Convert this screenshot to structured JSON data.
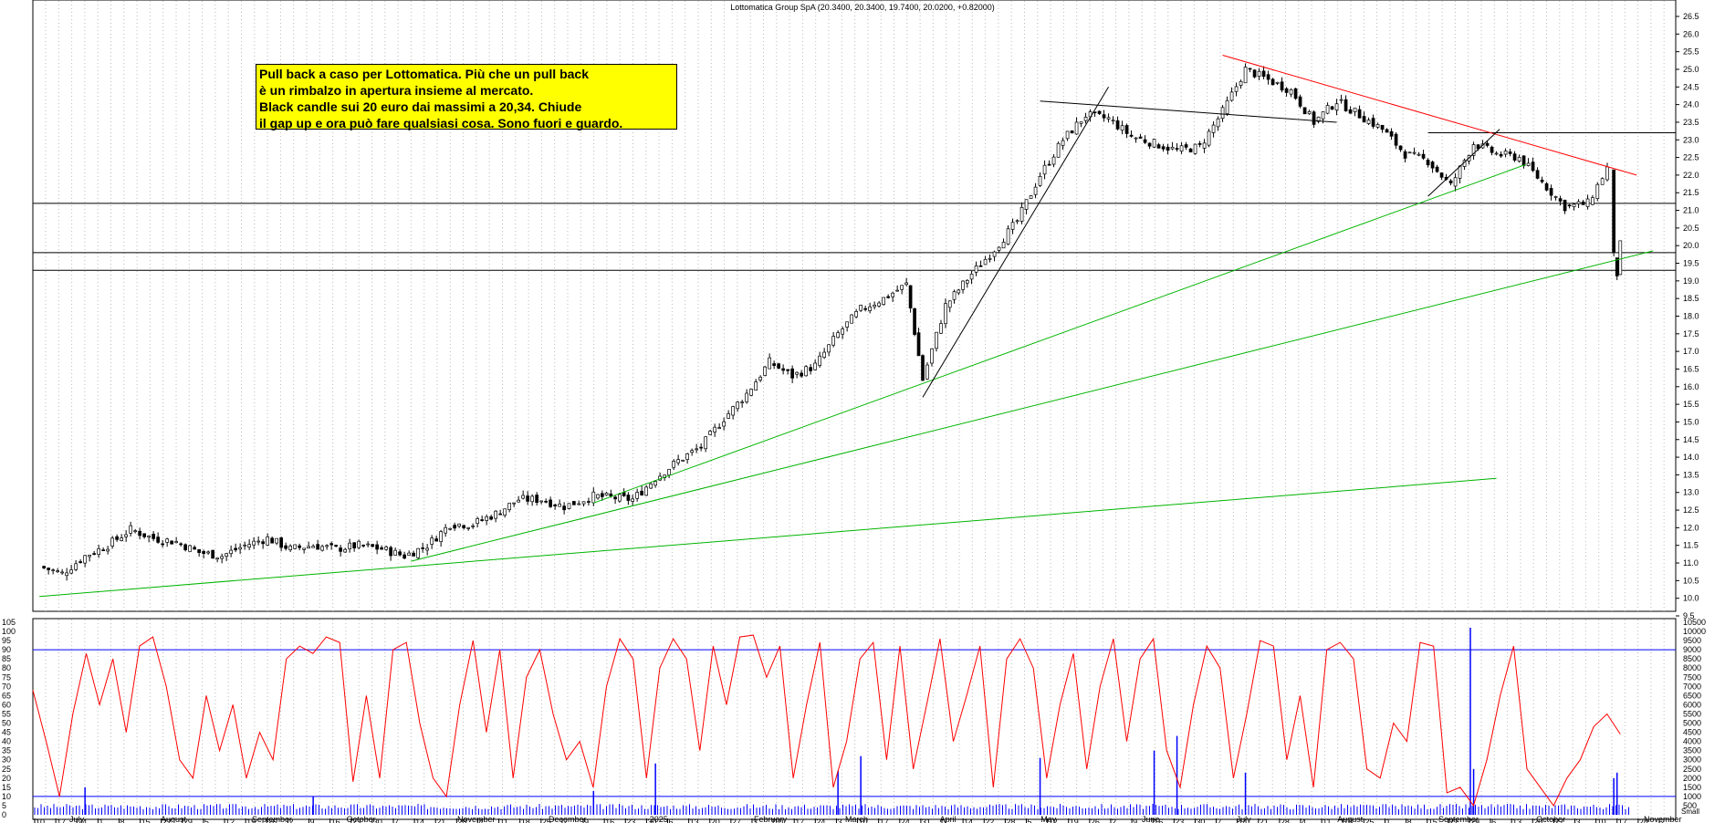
{
  "header": {
    "title": "Lottomatica Group SpA (20.3400, 20.3400, 19.7400, 20.0200, +0.82000)"
  },
  "annotation": {
    "lines": [
      "Pull back a caso per Lottomatica. Più che un pull back",
      "è un rimbalzo in apertura insieme al mercato.",
      "Black candle sui 20 euro dai massimi a 20,34. Chiude",
      "il gap up e ora può fare qualsiasi cosa. Sono fuori e guardo."
    ]
  },
  "colors": {
    "candle_line": "#000000",
    "support_green": "#00b400",
    "resistance_red": "#ff0000",
    "stochastic": "#ff0000",
    "volume": "#0000ff",
    "overbought_line": "#0000ff"
  },
  "chart_data": [
    {
      "type": "candlestick",
      "title": "Lottomatica Group SpA (20.3400, 20.3400, 19.7400, 20.0200, +0.82000)",
      "ylim": [
        9.5,
        26.5
      ],
      "y_ticks": [
        "26.5",
        "26.0",
        "25.5",
        "25.0",
        "24.5",
        "24.0",
        "23.5",
        "23.0",
        "22.5",
        "22.0",
        "21.5",
        "21.0",
        "20.5",
        "20.0",
        "19.5",
        "19.0",
        "18.5",
        "18.0",
        "17.5",
        "17.0",
        "16.5",
        "16.0",
        "15.5",
        "15.0",
        "14.5",
        "14.0",
        "13.5",
        "13.0",
        "12.5",
        "12.0",
        "11.5",
        "11.0",
        "10.5",
        "10.0",
        "9.5"
      ],
      "last": {
        "open": 20.34,
        "high": 20.34,
        "low": 19.74,
        "close": 20.02,
        "change": 0.82
      },
      "price_path": [
        [
          "2024-07-10",
          10.9
        ],
        [
          "2024-07-17",
          10.7
        ],
        [
          "2024-07-24",
          11.2
        ],
        [
          "2024-07-31",
          11.5
        ],
        [
          "2024-08-07",
          11.95
        ],
        [
          "2024-08-14",
          11.7
        ],
        [
          "2024-08-21",
          11.6
        ],
        [
          "2024-08-28",
          11.3
        ],
        [
          "2024-09-04",
          11.2
        ],
        [
          "2024-09-11",
          11.5
        ],
        [
          "2024-09-18",
          11.7
        ],
        [
          "2024-09-25",
          11.4
        ],
        [
          "2024-10-02",
          11.5
        ],
        [
          "2024-10-09",
          11.4
        ],
        [
          "2024-10-16",
          11.5
        ],
        [
          "2024-10-23",
          11.4
        ],
        [
          "2024-10-30",
          11.2
        ],
        [
          "2024-11-06",
          11.5
        ],
        [
          "2024-11-13",
          12.1
        ],
        [
          "2024-11-20",
          12.1
        ],
        [
          "2024-11-27",
          12.4
        ],
        [
          "2024-12-04",
          12.8
        ],
        [
          "2024-12-11",
          12.8
        ],
        [
          "2024-12-18",
          12.6
        ],
        [
          "2024-12-27",
          12.9
        ],
        [
          "2025-01-08",
          12.8
        ],
        [
          "2025-01-15",
          13.4
        ],
        [
          "2025-01-22",
          13.9
        ],
        [
          "2025-01-29",
          14.3
        ],
        [
          "2025-02-05",
          15.1
        ],
        [
          "2025-02-12",
          15.8
        ],
        [
          "2025-02-19",
          16.7
        ],
        [
          "2025-02-26",
          16.3
        ],
        [
          "2025-03-05",
          16.6
        ],
        [
          "2025-03-12",
          17.5
        ],
        [
          "2025-03-19",
          18.2
        ],
        [
          "2025-03-26",
          18.5
        ],
        [
          "2025-04-02",
          18.9
        ],
        [
          "2025-04-07",
          16.2
        ],
        [
          "2025-04-14",
          18.3
        ],
        [
          "2025-04-22",
          19.2
        ],
        [
          "2025-04-29",
          19.9
        ],
        [
          "2025-05-06",
          20.7
        ],
        [
          "2025-05-13",
          22.0
        ],
        [
          "2025-05-20",
          23.0
        ],
        [
          "2025-05-27",
          23.7
        ],
        [
          "2025-06-03",
          23.6
        ],
        [
          "2025-06-10",
          23.1
        ],
        [
          "2025-06-17",
          22.9
        ],
        [
          "2025-06-24",
          22.7
        ],
        [
          "2025-07-01",
          22.8
        ],
        [
          "2025-07-08",
          23.8
        ],
        [
          "2025-07-15",
          25.0
        ],
        [
          "2025-07-22",
          24.7
        ],
        [
          "2025-07-29",
          24.4
        ],
        [
          "2025-08-05",
          23.5
        ],
        [
          "2025-08-12",
          24.1
        ],
        [
          "2025-08-19",
          23.7
        ],
        [
          "2025-08-26",
          23.3
        ],
        [
          "2025-09-02",
          22.6
        ],
        [
          "2025-09-09",
          22.4
        ],
        [
          "2025-09-16",
          21.7
        ],
        [
          "2025-09-23",
          22.9
        ],
        [
          "2025-09-30",
          22.6
        ],
        [
          "2025-10-07",
          22.5
        ],
        [
          "2025-10-14",
          21.8
        ],
        [
          "2025-10-21",
          21.1
        ],
        [
          "2025-10-28",
          21.2
        ],
        [
          "2025-11-03",
          22.2
        ],
        [
          "2025-11-05",
          19.7
        ],
        [
          "2025-11-06",
          19.2
        ],
        [
          "2025-11-07",
          20.02
        ]
      ],
      "horizontal_levels": [
        21.2,
        19.8,
        19.3,
        23.2
      ],
      "trendlines": [
        {
          "color": "green",
          "from": [
            "2024-07-10",
            10.05
          ],
          "to": [
            "2025-09-30",
            13.4
          ]
        },
        {
          "color": "green",
          "from": [
            "2024-11-01",
            11.05
          ],
          "to": [
            "2025-11-17",
            19.85
          ]
        },
        {
          "color": "green",
          "from": [
            "2024-12-27",
            12.7
          ],
          "to": [
            "2025-10-09",
            22.3
          ]
        },
        {
          "color": "red",
          "from": [
            "2025-07-08",
            25.4
          ],
          "to": [
            "2025-11-12",
            22.0
          ]
        },
        {
          "color": "black",
          "from": [
            "2025-04-07",
            15.7
          ],
          "to": [
            "2025-06-03",
            24.5
          ]
        },
        {
          "color": "black",
          "from": [
            "2025-05-13",
            24.1
          ],
          "to": [
            "2025-08-12",
            23.5
          ]
        },
        {
          "color": "black",
          "from": [
            "2025-09-09",
            21.4
          ],
          "to": [
            "2025-10-01",
            23.3
          ]
        }
      ]
    },
    {
      "type": "line",
      "series": [
        {
          "values": [
            68,
            40,
            10,
            55,
            88,
            60,
            85,
            45,
            92,
            97,
            70,
            30,
            20,
            65,
            35,
            60,
            20,
            45,
            30,
            85,
            92,
            88,
            97,
            94,
            18,
            65,
            20,
            90,
            94,
            50,
            20,
            10,
            60,
            95,
            45,
            90,
            20,
            75,
            90,
            55,
            30,
            40,
            15,
            70,
            96,
            85,
            20,
            80,
            96,
            85,
            35,
            92,
            60,
            97,
            98,
            75,
            92,
            20,
            60,
            94,
            15,
            40,
            85,
            94,
            30,
            92,
            25,
            60,
            96,
            40,
            65,
            92,
            15,
            85,
            96,
            80,
            20,
            60,
            88,
            25,
            70,
            96,
            40,
            85,
            96,
            35,
            15,
            60,
            92,
            80,
            20,
            55,
            95,
            92,
            30,
            65,
            15,
            90,
            94,
            85,
            25,
            20,
            50,
            40,
            94,
            92,
            12,
            15,
            5,
            30,
            65,
            92,
            25,
            15,
            5,
            20,
            30,
            48,
            55,
            44
          ]
        }
      ],
      "ylim": [
        0,
        105
      ],
      "y_ticks": [
        "105",
        "100",
        "95",
        "90",
        "85",
        "80",
        "75",
        "70",
        "65",
        "60",
        "55",
        "50",
        "45",
        "40",
        "35",
        "30",
        "25",
        "20",
        "15",
        "10",
        "5",
        "0"
      ],
      "reference_lines": [
        90,
        10
      ]
    },
    {
      "type": "bar",
      "name": "Vol",
      "ylim": [
        0,
        10500
      ],
      "y_ticks": [
        "10500",
        "10000",
        "9500",
        "9000",
        "8500",
        "8000",
        "7500",
        "7000",
        "6500",
        "6000",
        "5500",
        "5000",
        "4500",
        "4000",
        "3500",
        "3000",
        "2500",
        "2000",
        "1500",
        "1000",
        "500"
      ],
      "spikes": [
        [
          "2024-07-24",
          1500
        ],
        [
          "2024-10-02",
          1000
        ],
        [
          "2024-12-27",
          1300
        ],
        [
          "2025-01-15",
          2800
        ],
        [
          "2025-03-12",
          2400
        ],
        [
          "2025-03-19",
          3200
        ],
        [
          "2025-05-13",
          3100
        ],
        [
          "2025-06-17",
          3500
        ],
        [
          "2025-06-24",
          4300
        ],
        [
          "2025-07-15",
          2300
        ],
        [
          "2025-09-22",
          10200
        ],
        [
          "2025-09-23",
          2500
        ],
        [
          "2025-11-05",
          2000
        ],
        [
          "2025-11-06",
          2300
        ]
      ],
      "baseline": 300
    }
  ],
  "x_axis": {
    "day_labels": [
      "10",
      "17",
      "24",
      "1",
      "8",
      "15",
      "22",
      "29",
      "5",
      "12",
      "19",
      "26",
      "2",
      "9",
      "16",
      "23",
      "30",
      "7",
      "14",
      "21",
      "28",
      "4",
      "11",
      "18",
      "25",
      "2",
      "9",
      "16",
      "23",
      "30",
      "6",
      "13",
      "20",
      "27",
      "3",
      "10",
      "17",
      "24",
      "3",
      "10",
      "17",
      "24",
      "31",
      "7",
      "14",
      "22",
      "28",
      "5",
      "12",
      "19",
      "26",
      "2",
      "9",
      "16",
      "23",
      "30",
      "7",
      "14",
      "21",
      "28",
      "4",
      "11",
      "18",
      "25",
      "1",
      "8",
      "15",
      "22",
      "29",
      "6",
      "13",
      "20",
      "27",
      "3",
      "10",
      "17",
      "24",
      "2"
    ],
    "month_labels": [
      "July",
      "August",
      "September",
      "October",
      "November",
      "December",
      "2025",
      "February",
      "March",
      "April",
      "May",
      "June",
      "July",
      "August",
      "September",
      "October",
      "November"
    ]
  },
  "panel_labels": {
    "volume_unit": "Small"
  }
}
